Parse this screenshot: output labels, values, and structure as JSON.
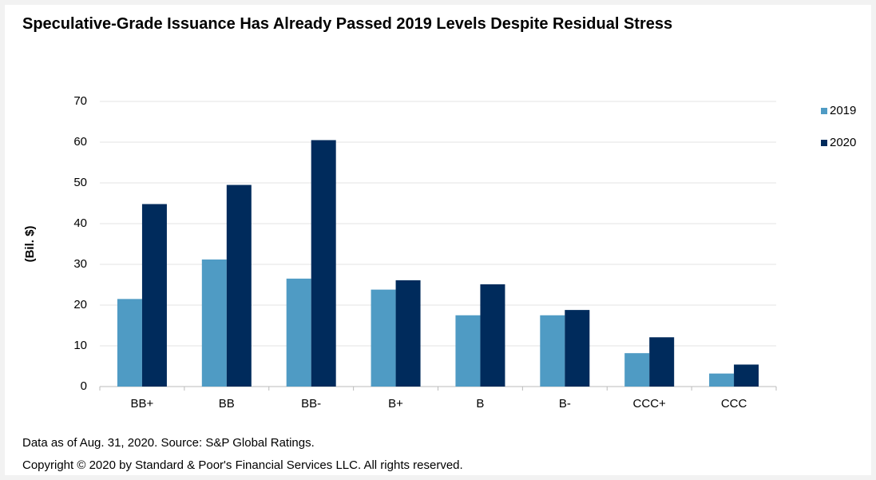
{
  "chart_data": {
    "type": "bar",
    "title": "Speculative-Grade Issuance Has Already Passed 2019 Levels Despite Residual Stress",
    "y_label": "(Bil. $)",
    "categories": [
      "BB+",
      "BB",
      "BB-",
      "B+",
      "B",
      "B-",
      "CCC+",
      "CCC"
    ],
    "series": [
      {
        "name": "2019",
        "color": "#4f9bc4",
        "values": [
          21.5,
          31.2,
          26.5,
          23.8,
          17.5,
          17.5,
          8.2,
          3.2
        ]
      },
      {
        "name": "2020",
        "color": "#002b5c",
        "values": [
          44.8,
          49.5,
          60.5,
          26.1,
          25.1,
          18.8,
          12.1,
          5.4
        ]
      }
    ],
    "ylim": [
      0,
      70
    ],
    "yticks": [
      0,
      10,
      20,
      30,
      40,
      50,
      60,
      70
    ],
    "grid": true,
    "legend": "right",
    "notes": [
      "Data as of Aug. 31, 2020. Source: S&P Global Ratings.",
      "Copyright © 2020 by Standard & Poor's Financial Services LLC. All rights reserved."
    ]
  }
}
